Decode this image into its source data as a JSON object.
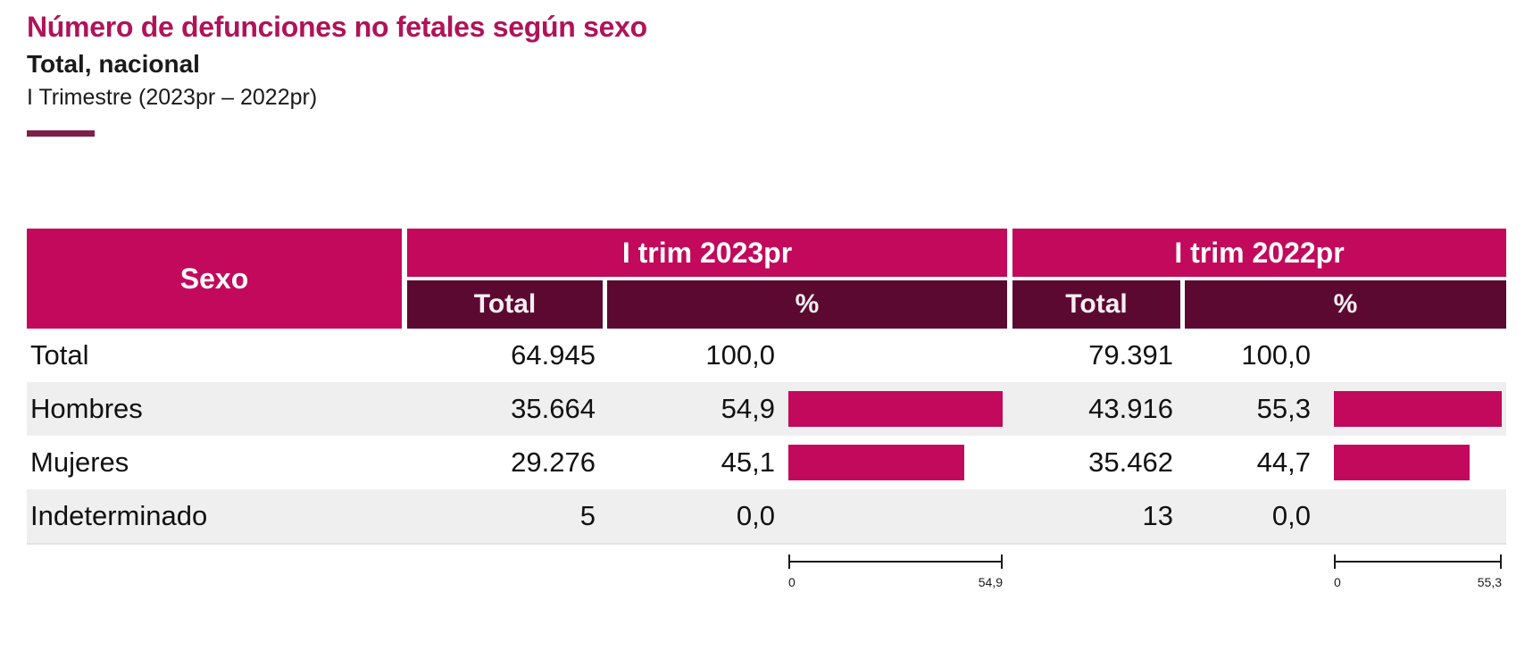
{
  "page": {
    "title": "Número de defunciones no fetales según sexo",
    "subtitle": "Total, nacional",
    "period": "I Trimestre (2023pr – 2022pr)"
  },
  "colors": {
    "accent_pink": "#C2095C",
    "dark_maroon": "#5C0931",
    "title_pink": "#B01359",
    "underline_maroon": "#7D1F47",
    "row_alt_gray": "#EFEFEF"
  },
  "table": {
    "sexo_header": "Sexo",
    "groups": [
      {
        "label": "I trim 2023pr",
        "total_label": "Total",
        "pct_label": "%",
        "axis_min_label": "0",
        "axis_max_label": "54,9",
        "axis_max": 54.9
      },
      {
        "label": "I trim 2022pr",
        "total_label": "Total",
        "pct_label": "%",
        "axis_min_label": "0",
        "axis_max_label": "55,3",
        "axis_max": 55.3
      }
    ],
    "rows": [
      {
        "label": "Total",
        "y2023": {
          "total": "64.945",
          "pct": "100,0",
          "bar": null
        },
        "y2022": {
          "total": "79.391",
          "pct": "100,0",
          "bar": null
        }
      },
      {
        "label": "Hombres",
        "y2023": {
          "total": "35.664",
          "pct": "54,9",
          "bar": 54.9
        },
        "y2022": {
          "total": "43.916",
          "pct": "55,3",
          "bar": 55.3
        }
      },
      {
        "label": "Mujeres",
        "y2023": {
          "total": "29.276",
          "pct": "45,1",
          "bar": 45.1
        },
        "y2022": {
          "total": "35.462",
          "pct": "44,7",
          "bar": 44.7
        }
      },
      {
        "label": "Indeterminado",
        "y2023": {
          "total": "5",
          "pct": "0,0",
          "bar": 0
        },
        "y2022": {
          "total": "13",
          "pct": "0,0",
          "bar": 0
        }
      }
    ]
  },
  "chart_data": {
    "type": "table",
    "title": "Número de defunciones no fetales según sexo",
    "subtitle": "Total, nacional",
    "period": "I Trimestre (2023pr – 2022pr)",
    "column_groups": [
      "I trim 2023pr",
      "I trim 2022pr"
    ],
    "columns": [
      "Sexo",
      "I trim 2023pr Total",
      "I trim 2023pr %",
      "I trim 2022pr Total",
      "I trim 2022pr %"
    ],
    "rows": [
      [
        "Total",
        64945,
        100.0,
        79391,
        100.0
      ],
      [
        "Hombres",
        35664,
        54.9,
        43916,
        55.3
      ],
      [
        "Mujeres",
        29276,
        45.1,
        35462,
        44.7
      ],
      [
        "Indeterminado",
        5,
        0.0,
        13,
        0.0
      ]
    ],
    "embedded_bars": {
      "bars_shown_for": [
        "Hombres",
        "Mujeres"
      ],
      "axis_2023_range": [
        0,
        54.9
      ],
      "axis_2022_range": [
        0,
        55.3
      ],
      "bar_color": "#C2095C"
    },
    "layout": {
      "grid": false,
      "legend": "none",
      "bars_inline_in_pct_columns": true
    }
  }
}
